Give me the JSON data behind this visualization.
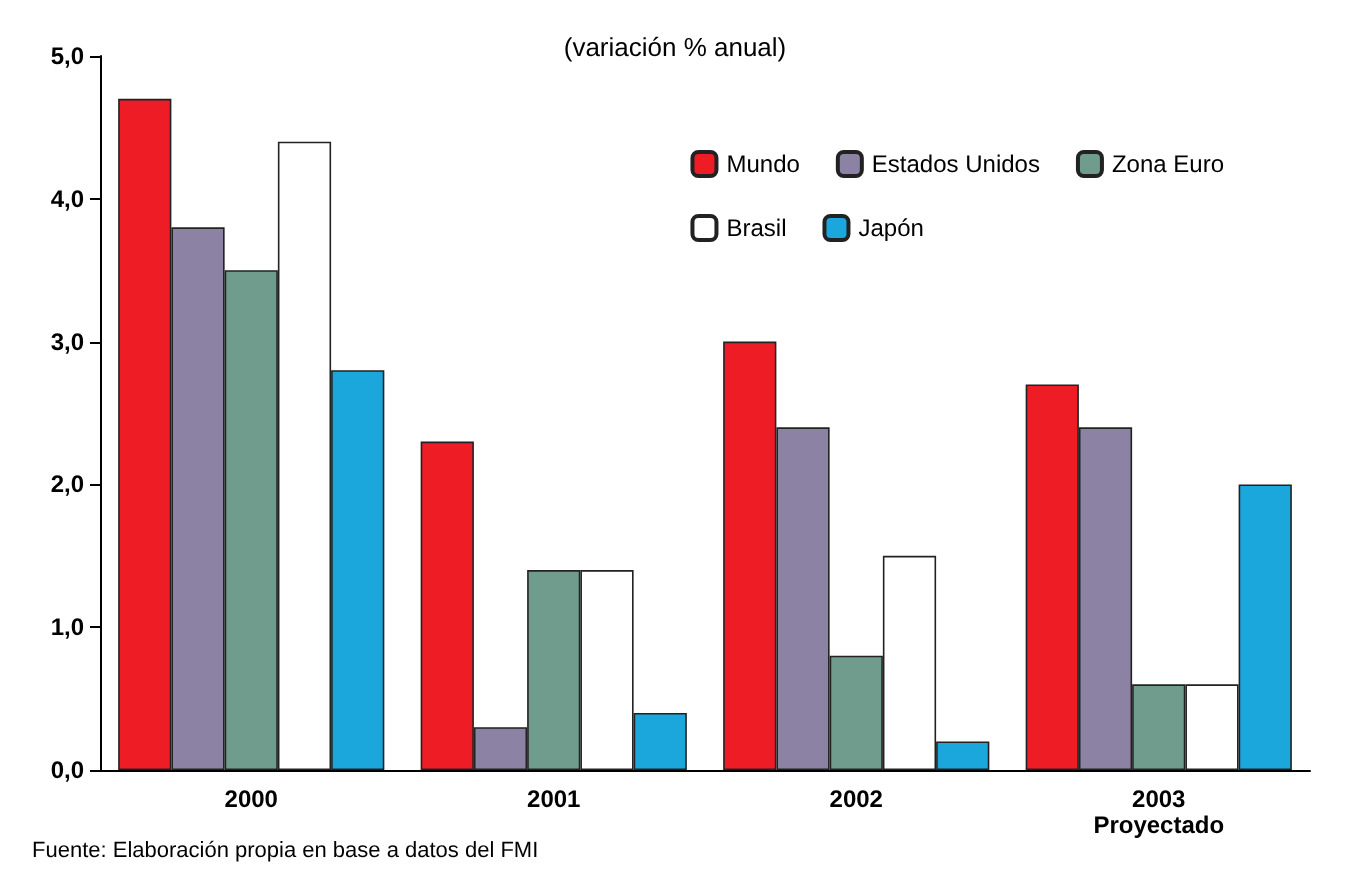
{
  "chart_data": {
    "type": "bar",
    "title": "(variación % anual)",
    "categories": [
      "2000",
      "2001",
      "2002",
      "2003\nProyectado"
    ],
    "series": [
      {
        "name": "Mundo",
        "color": "#ee1c25",
        "values": [
          4.7,
          2.3,
          3.0,
          2.7
        ]
      },
      {
        "name": "Estados Unidos",
        "color": "#8c82a3",
        "values": [
          3.8,
          0.3,
          2.4,
          2.4
        ]
      },
      {
        "name": "Zona Euro",
        "color": "#6f9c8c",
        "values": [
          3.5,
          1.4,
          0.8,
          0.6
        ]
      },
      {
        "name": "Brasil",
        "color": "#ffffff",
        "values": [
          4.4,
          1.4,
          1.5,
          0.6
        ]
      },
      {
        "name": "Japón",
        "color": "#1ba6dc",
        "values": [
          2.8,
          0.4,
          0.2,
          2.0
        ]
      }
    ],
    "ylim": [
      0,
      5
    ],
    "yticks": [
      {
        "value": 0,
        "label": "0,0"
      },
      {
        "value": 1,
        "label": "1,0"
      },
      {
        "value": 2,
        "label": "2,0"
      },
      {
        "value": 3,
        "label": "3,0"
      },
      {
        "value": 4,
        "label": "4,0"
      },
      {
        "value": 5,
        "label": "5,0"
      }
    ],
    "grid": false,
    "legend": "top right",
    "annotations": [
      "Fuente: Elaboración propia en base a datos del FMI"
    ]
  }
}
